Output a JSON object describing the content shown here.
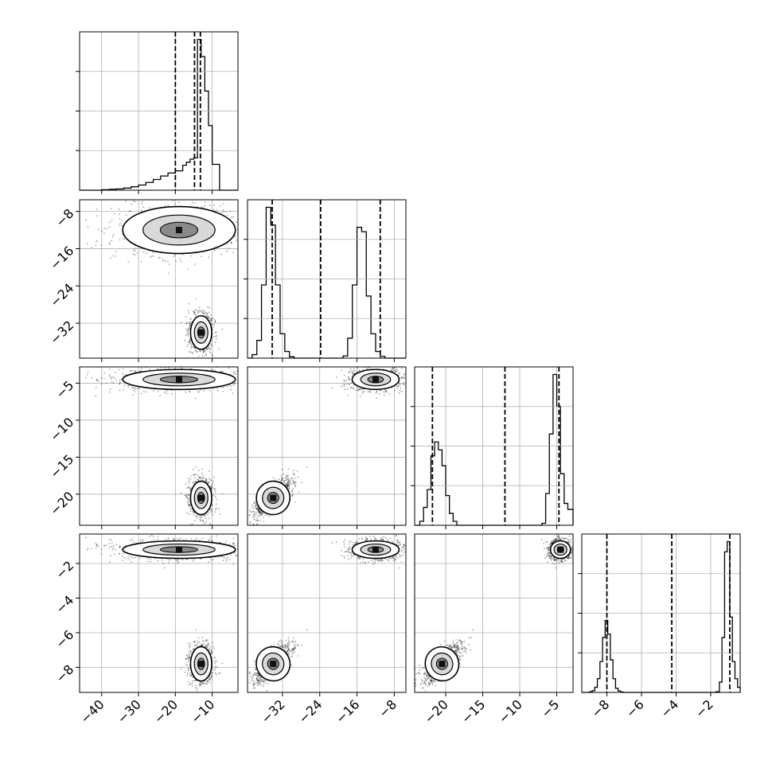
{
  "chart_data": {
    "type": "corner",
    "grid": true,
    "n_params": 4,
    "axes": [
      {
        "range": [
          -46,
          -3
        ],
        "ticks": [
          -40,
          -30,
          -20,
          -10
        ],
        "tick_labels": [
          "−40",
          "−30",
          "−20",
          "−10"
        ]
      },
      {
        "range": [
          -39.5,
          -5.5
        ],
        "ticks": [
          -32,
          -24,
          -16,
          -8
        ],
        "tick_labels": [
          "−32",
          "−24",
          "−16",
          "−8"
        ]
      },
      {
        "range": [
          -24.2,
          -2.8
        ],
        "ticks": [
          -20,
          -15,
          -10,
          -5
        ],
        "tick_labels": [
          "−20",
          "−15",
          "−10",
          "−5"
        ]
      },
      {
        "range": [
          -9.45,
          -0.3
        ],
        "ticks": [
          -8,
          -6,
          -4,
          -2
        ],
        "tick_labels": [
          "−8",
          "−6",
          "−4",
          "−2"
        ]
      }
    ],
    "histograms": [
      {
        "edges": [
          -46,
          -43,
          -40,
          -38,
          -36,
          -34,
          -32,
          -30,
          -28,
          -26,
          -24,
          -22,
          -20,
          -18,
          -17,
          -16,
          -15,
          -14,
          -13,
          -12,
          -11,
          -10,
          -8,
          -3
        ],
        "counts": [
          0,
          0,
          1,
          2,
          3,
          5,
          8,
          12,
          18,
          25,
          33,
          40,
          45,
          58,
          65,
          72,
          75,
          350,
          310,
          230,
          150,
          60,
          0
        ],
        "quantiles": [
          -20,
          -14.8,
          -13.2
        ]
      },
      {
        "edges": [
          -39.5,
          -38.5,
          -37.5,
          -36.5,
          -35.5,
          -34.5,
          -33.5,
          -32.5,
          -31.5,
          -30.5,
          -29.5,
          -19,
          -18,
          -17,
          -16,
          -15,
          -14,
          -13,
          -12,
          -11,
          -10,
          -9,
          -8,
          -7,
          -6,
          -5.5
        ],
        "counts": [
          0,
          8,
          40,
          165,
          340,
          300,
          165,
          55,
          15,
          3,
          0,
          5,
          45,
          165,
          295,
          285,
          140,
          55,
          15,
          4,
          0,
          0,
          0,
          0,
          0
        ],
        "quantiles": [
          -34.2,
          -23.8,
          -11.0
        ]
      },
      {
        "edges": [
          -24.2,
          -23.5,
          -23,
          -22.5,
          -22,
          -21.5,
          -21,
          -20.5,
          -20,
          -19.5,
          -19,
          -18.5,
          -17.5,
          -8,
          -7,
          -6.5,
          -6,
          -5.5,
          -5,
          -4.5,
          -4,
          -3.5,
          -2.8
        ],
        "counts": [
          0,
          10,
          45,
          90,
          175,
          210,
          190,
          150,
          75,
          30,
          10,
          0,
          0,
          0,
          5,
          80,
          230,
          380,
          300,
          130,
          55,
          40
        ],
        "quantiles": [
          -21.8,
          -12.0,
          -4.7
        ]
      },
      {
        "edges": [
          -9.45,
          -9.3,
          -9.15,
          -9.0,
          -8.85,
          -8.7,
          -8.55,
          -8.4,
          -8.25,
          -8.1,
          -7.95,
          -7.8,
          -7.65,
          -7.5,
          -7.35,
          -7.2,
          -7.05,
          -6.9,
          -6.75,
          -6.6,
          -6.45,
          -6.3,
          -1.7,
          -1.5,
          -1.35,
          -1.2,
          -1.05,
          -0.9,
          -0.75,
          -0.6,
          -0.45,
          -0.3
        ],
        "counts": [
          0,
          0,
          0,
          2,
          5,
          15,
          40,
          90,
          160,
          210,
          170,
          95,
          40,
          12,
          4,
          1,
          0,
          0,
          0,
          0,
          0,
          0,
          2,
          30,
          160,
          410,
          440,
          220,
          90,
          40,
          15
        ],
        "quantiles": [
          -8.0,
          -4.25,
          -0.9
        ]
      }
    ],
    "modes": [
      {
        "values": [
          -19,
          -12,
          -4.5,
          -1.2
        ],
        "spread": [
          8.5,
          2.8,
          0.75,
          0.28
        ]
      },
      {
        "values": [
          -13,
          -34,
          -20.5,
          -7.8
        ],
        "spread": [
          1.6,
          2.0,
          1.25,
          0.55
        ]
      }
    ]
  }
}
